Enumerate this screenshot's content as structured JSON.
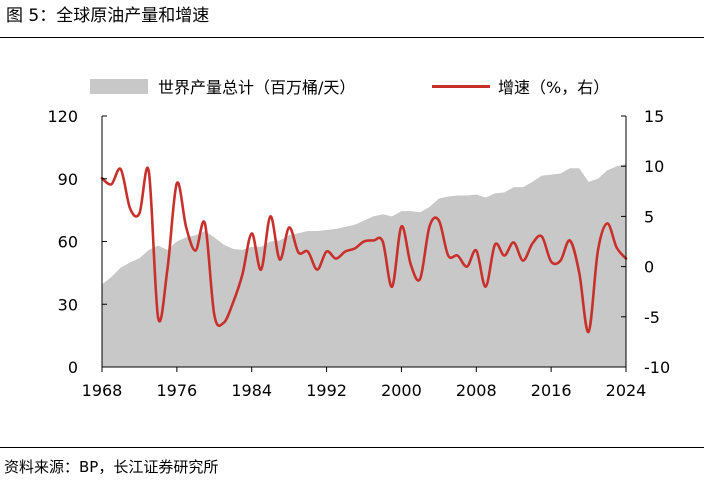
{
  "figure": {
    "title": "图 5：全球原油产量和增速",
    "source": "资料来源：BP，长江证券研究所"
  },
  "colors": {
    "area": "#c8c8c8",
    "line": "#c8312b"
  },
  "chart_data": {
    "type": "area+line",
    "title": "全球原油产量和增速",
    "legend_position": "top",
    "series": [
      {
        "name": "世界产量总计（百万桶/天）",
        "kind": "area",
        "axis": "left"
      },
      {
        "name": "增速（%，右）",
        "kind": "line",
        "axis": "right"
      }
    ],
    "x_ticks": [
      "1968",
      "1976",
      "1984",
      "1992",
      "2000",
      "2008",
      "2016",
      "2024"
    ],
    "y_left_ticks": [
      "120",
      "90",
      "60",
      "30",
      "0"
    ],
    "y_right_ticks": [
      "15",
      "10",
      "5",
      "0",
      "-5",
      "-10"
    ],
    "y_left_range": [
      0,
      120
    ],
    "y_right_range": [
      -10,
      15
    ],
    "x_range": [
      1968,
      2024
    ],
    "years": [
      1968,
      1969,
      1970,
      1971,
      1972,
      1973,
      1974,
      1975,
      1976,
      1977,
      1978,
      1979,
      1980,
      1981,
      1982,
      1983,
      1984,
      1985,
      1986,
      1987,
      1988,
      1989,
      1990,
      1991,
      1992,
      1993,
      1994,
      1995,
      1996,
      1997,
      1998,
      1999,
      2000,
      2001,
      2002,
      2003,
      2004,
      2005,
      2006,
      2007,
      2008,
      2009,
      2010,
      2011,
      2012,
      2013,
      2014,
      2015,
      2016,
      2017,
      2018,
      2019,
      2020,
      2021,
      2022,
      2023,
      2024
    ],
    "production": [
      39.5,
      43,
      47.5,
      50,
      52,
      56,
      58,
      56,
      60,
      62,
      63,
      65,
      62,
      58.5,
      56.5,
      56,
      57.5,
      57.5,
      60,
      60.5,
      63,
      64,
      65,
      65,
      65.5,
      66,
      67,
      68,
      70,
      72,
      73,
      72,
      74.5,
      74.5,
      74,
      76.5,
      80.5,
      81.5,
      82,
      82,
      82.5,
      81,
      83,
      83.5,
      86,
      86,
      88.5,
      91.5,
      92,
      92.5,
      95,
      95,
      88.5,
      90,
      94,
      96,
      97
    ],
    "growth_pct": [
      8.8,
      8.2,
      9.7,
      5.8,
      5.3,
      9.5,
      -5.1,
      -0.2,
      8.3,
      3.9,
      1.6,
      4.3,
      -4.8,
      -5.6,
      -3.6,
      -0.8,
      3.3,
      -0.3,
      5,
      0.7,
      3.9,
      1.4,
      1.5,
      -0.3,
      1.5,
      0.8,
      1.5,
      1.8,
      2.5,
      2.6,
      2.5,
      -2,
      4,
      0.2,
      -1.2,
      4,
      4.6,
      1.1,
      1.1,
      0,
      1.6,
      -2,
      2.2,
      1.1,
      2.4,
      0.6,
      2.3,
      3,
      0.5,
      0.6,
      2.6,
      -0.6,
      -6.5,
      1.6,
      4.3,
      1.9,
      0.8
    ]
  }
}
